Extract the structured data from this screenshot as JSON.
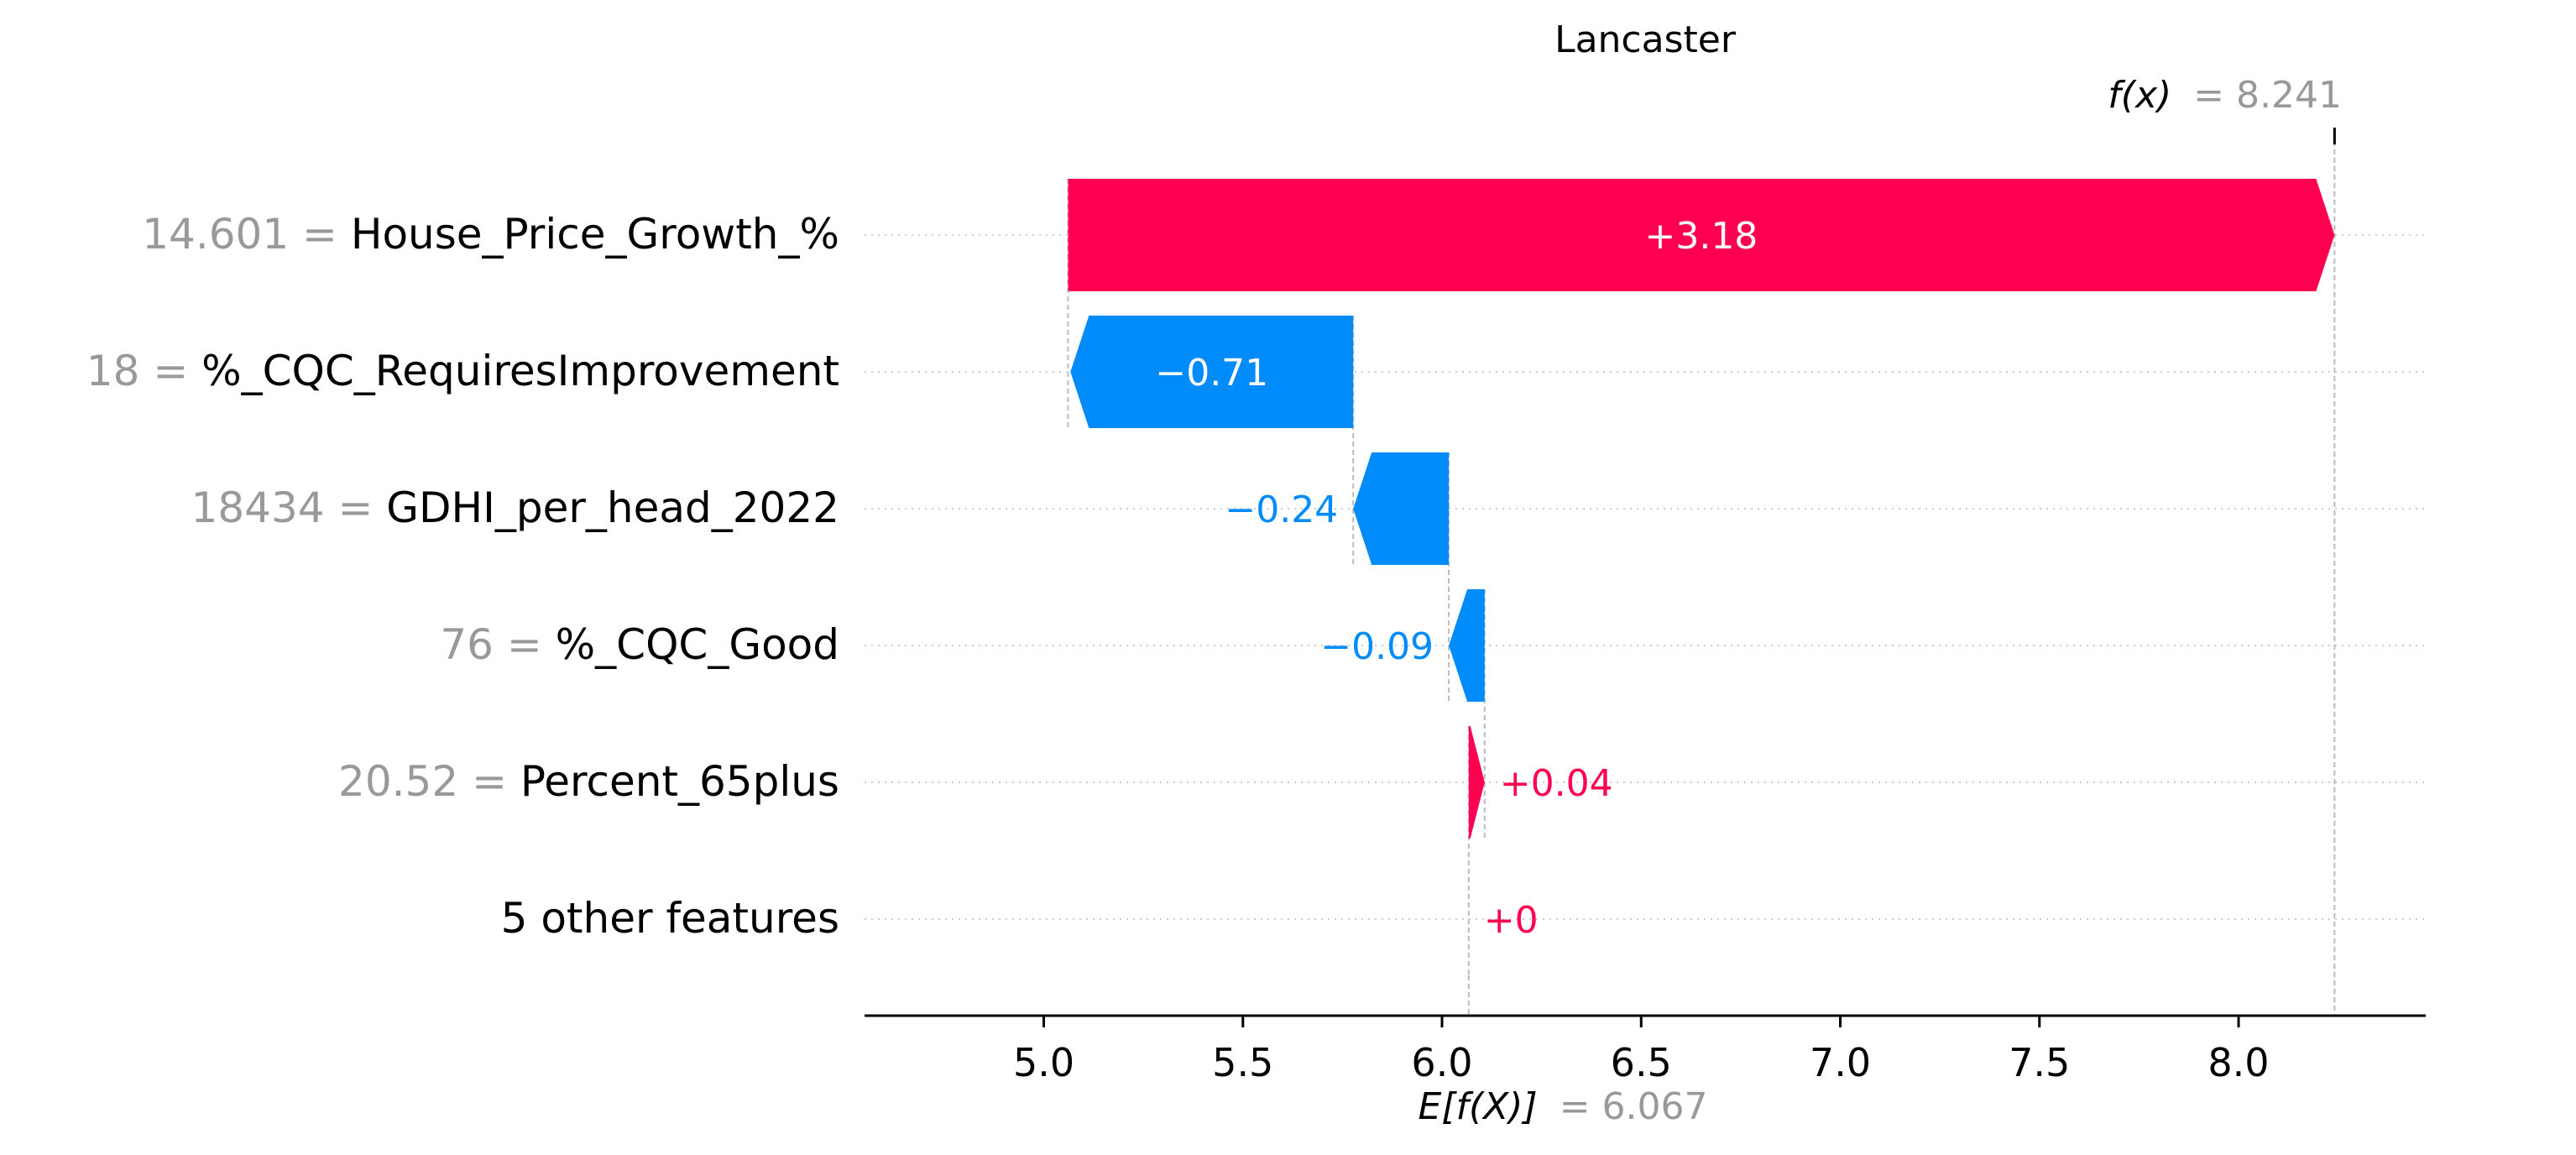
{
  "chart_data": {
    "type": "waterfall",
    "title": "Lancaster",
    "xlabel": "",
    "ylabel": "",
    "xlim": [
      4.55,
      8.47
    ],
    "ticks": [
      5.0,
      5.5,
      6.0,
      6.5,
      7.0,
      7.5,
      8.0
    ],
    "tick_labels": [
      "5.0",
      "5.5",
      "6.0",
      "6.5",
      "7.0",
      "7.5",
      "8.0"
    ],
    "base_value": 6.067,
    "base_label": "E[f(X)]",
    "base_value_label": "= 6.067",
    "output_value": 8.241,
    "output_label": "f(x)",
    "output_value_label": "= 8.241",
    "features": [
      {
        "value_label": "14.601 =",
        "name": "House_Price_Growth_%",
        "shap": 3.18,
        "label": "+3.18",
        "label_inside": true
      },
      {
        "value_label": "18 =",
        "name": "%_CQC_RequiresImprovement",
        "shap": -0.71,
        "label": "−0.71",
        "label_inside": true
      },
      {
        "value_label": "18434 =",
        "name": "GDHI_per_head_2022",
        "shap": -0.24,
        "label": "−0.24",
        "label_inside": false
      },
      {
        "value_label": "76 =",
        "name": "%_CQC_Good",
        "shap": -0.09,
        "label": "−0.09",
        "label_inside": false
      },
      {
        "value_label": "20.52 =",
        "name": "Percent_65plus",
        "shap": 0.04,
        "label": "+0.04",
        "label_inside": false
      },
      {
        "value_label": "",
        "name": "5 other features",
        "shap": 0.0,
        "label": "+0",
        "label_inside": false
      }
    ],
    "colors": {
      "positive": "#ff0051",
      "negative": "#008bfb",
      "feature_value": "#999999",
      "text": "#000000"
    }
  }
}
